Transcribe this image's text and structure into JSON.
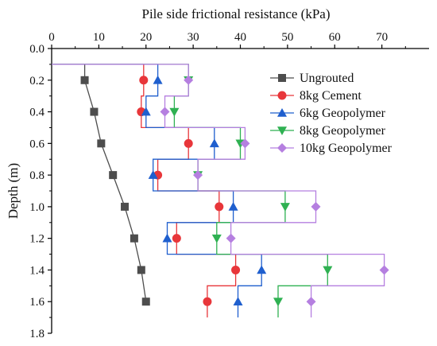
{
  "chart_data": {
    "type": "line",
    "xlabel": "Pile side frictional resistance (kPa)",
    "ylabel": "Depth (m)",
    "xlim": [
      0,
      80
    ],
    "ylim": [
      0,
      1.8
    ],
    "x_ticks": [
      "0",
      "10",
      "20",
      "30",
      "40",
      "50",
      "60",
      "70"
    ],
    "y_ticks": [
      "0.0",
      "0.2",
      "0.4",
      "0.6",
      "0.8",
      "1.0",
      "1.2",
      "1.4",
      "1.6",
      "1.8"
    ],
    "x_tick_values": [
      0,
      10,
      20,
      30,
      40,
      50,
      60,
      70
    ],
    "y_tick_values": [
      0,
      0.2,
      0.4,
      0.6,
      0.8,
      1.0,
      1.2,
      1.4,
      1.6,
      1.8
    ],
    "legend_position": "right",
    "series": [
      {
        "name": "Ungrouted",
        "marker": "square",
        "color": "#4d4d4d",
        "points": [
          [
            7,
            0.2
          ],
          [
            9,
            0.4
          ],
          [
            10.5,
            0.6
          ],
          [
            13,
            0.8
          ],
          [
            15.5,
            1.0
          ],
          [
            17.5,
            1.2
          ],
          [
            19,
            1.4
          ],
          [
            20,
            1.6
          ]
        ],
        "style": "polyline"
      },
      {
        "name": "8kg Cement",
        "marker": "circle",
        "color": "#e8363a",
        "points": [
          [
            19.5,
            0.2
          ],
          [
            19,
            0.4
          ],
          [
            29,
            0.6
          ],
          [
            22.5,
            0.8
          ],
          [
            35.5,
            1.0
          ],
          [
            26.5,
            1.2
          ],
          [
            39,
            1.4
          ],
          [
            33,
            1.6
          ]
        ],
        "style": "step"
      },
      {
        "name": "6kg Geopolymer",
        "marker": "triangle-up",
        "color": "#1f5fce",
        "points": [
          [
            22.5,
            0.2
          ],
          [
            20,
            0.4
          ],
          [
            34.5,
            0.6
          ],
          [
            21.5,
            0.8
          ],
          [
            38.5,
            1.0
          ],
          [
            24.5,
            1.2
          ],
          [
            44.5,
            1.4
          ],
          [
            39.5,
            1.6
          ]
        ],
        "style": "step"
      },
      {
        "name": "8kg Geopolymer",
        "marker": "triangle-down",
        "color": "#2fb152",
        "points": [
          [
            29,
            0.2
          ],
          [
            26,
            0.4
          ],
          [
            40,
            0.6
          ],
          [
            31,
            0.8
          ],
          [
            49.5,
            1.0
          ],
          [
            35,
            1.2
          ],
          [
            58.5,
            1.4
          ],
          [
            48,
            1.6
          ]
        ],
        "style": "step"
      },
      {
        "name": "10kg Geopolymer",
        "marker": "diamond",
        "color": "#b57fe0",
        "points": [
          [
            29,
            0.2
          ],
          [
            24,
            0.4
          ],
          [
            41,
            0.6
          ],
          [
            31,
            0.8
          ],
          [
            56,
            1.0
          ],
          [
            38,
            1.2
          ],
          [
            70.5,
            1.4
          ],
          [
            55,
            1.6
          ]
        ],
        "style": "step"
      }
    ]
  }
}
